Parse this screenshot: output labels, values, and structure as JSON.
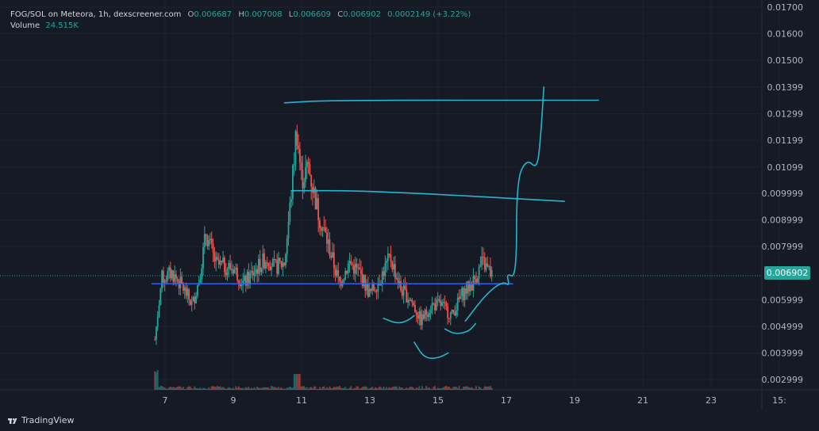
{
  "legend": {
    "symbol": "FOG/SOL on Meteora, 1h, dexscreener.com",
    "open_label": "O",
    "open": "0.006687",
    "high_label": "H",
    "high": "0.007008",
    "low_label": "L",
    "low": "0.006609",
    "close_label": "C",
    "close": "0.006902",
    "change": "0.0002149 (+3.22%)",
    "volume_label": "Volume",
    "volume": "24.515K"
  },
  "last_price": "0.006902",
  "brand": "TradingView",
  "colors": {
    "up": "#26a69a",
    "down": "#ef5350",
    "drawing": "#26b5cf",
    "hline": "#2962ff",
    "background": "#161a25"
  },
  "chart_data": {
    "type": "candlestick",
    "ylim": [
      0.0025,
      0.0172
    ],
    "xlim": [
      6.0,
      26.0
    ],
    "y_ticks": [
      "0.01700",
      "0.01600",
      "0.01500",
      "0.01399",
      "0.01299",
      "0.01199",
      "0.01099",
      "0.009999",
      "0.008999",
      "0.007999",
      "0.005999",
      "0.004999",
      "0.003999",
      "0.002999"
    ],
    "x_ticks": [
      "7",
      "9",
      "11",
      "13",
      "15",
      "17",
      "19",
      "21",
      "23",
      "15:"
    ],
    "key_closes": [
      [
        6.7,
        0.0045
      ],
      [
        6.9,
        0.0068
      ],
      [
        7.2,
        0.007
      ],
      [
        7.5,
        0.0065
      ],
      [
        7.8,
        0.0058
      ],
      [
        8.0,
        0.0068
      ],
      [
        8.2,
        0.0085
      ],
      [
        8.5,
        0.0073
      ],
      [
        9.0,
        0.0072
      ],
      [
        9.3,
        0.0066
      ],
      [
        9.7,
        0.0072
      ],
      [
        10.0,
        0.0076
      ],
      [
        10.2,
        0.0072
      ],
      [
        10.5,
        0.0074
      ],
      [
        10.7,
        0.01
      ],
      [
        10.85,
        0.0125
      ],
      [
        11.0,
        0.0105
      ],
      [
        11.2,
        0.011
      ],
      [
        11.5,
        0.0092
      ],
      [
        11.8,
        0.008
      ],
      [
        12.1,
        0.0066
      ],
      [
        12.4,
        0.0074
      ],
      [
        12.7,
        0.007
      ],
      [
        13.0,
        0.0062
      ],
      [
        13.3,
        0.0068
      ],
      [
        13.6,
        0.0076
      ],
      [
        13.9,
        0.0064
      ],
      [
        14.2,
        0.006
      ],
      [
        14.5,
        0.0052
      ],
      [
        14.8,
        0.0058
      ],
      [
        15.1,
        0.0058
      ],
      [
        15.4,
        0.0054
      ],
      [
        15.7,
        0.0062
      ],
      [
        16.0,
        0.0066
      ],
      [
        16.3,
        0.0074
      ],
      [
        16.6,
        0.006902
      ]
    ],
    "horizontal_line": 0.0066,
    "drawings": [
      {
        "name": "top-line",
        "points": [
          [
            10.5,
            0.0134
          ],
          [
            11.8,
            0.0135
          ],
          [
            19.7,
            0.0135
          ]
        ]
      },
      {
        "name": "mid-line",
        "points": [
          [
            10.7,
            0.0101
          ],
          [
            13.0,
            0.0101
          ],
          [
            18.7,
            0.0097
          ]
        ]
      },
      {
        "name": "cup-left",
        "points": [
          [
            13.4,
            0.0053
          ],
          [
            13.8,
            0.0051
          ],
          [
            14.1,
            0.0052
          ],
          [
            14.3,
            0.0054
          ]
        ]
      },
      {
        "name": "cup-big",
        "points": [
          [
            14.3,
            0.0044
          ],
          [
            14.6,
            0.0038
          ],
          [
            15.0,
            0.0038
          ],
          [
            15.3,
            0.004
          ]
        ]
      },
      {
        "name": "cup-right",
        "points": [
          [
            15.2,
            0.0049
          ],
          [
            15.5,
            0.0047
          ],
          [
            15.9,
            0.0048
          ],
          [
            16.1,
            0.0051
          ]
        ]
      },
      {
        "name": "breakout-path",
        "points": [
          [
            15.8,
            0.0052
          ],
          [
            16.4,
            0.0062
          ],
          [
            16.9,
            0.0067
          ],
          [
            17.1,
            0.0065
          ],
          [
            17.0,
            0.007
          ],
          [
            17.3,
            0.0068
          ],
          [
            17.3,
            0.0105
          ],
          [
            17.6,
            0.0113
          ],
          [
            17.9,
            0.0109
          ],
          [
            18.0,
            0.012
          ],
          [
            18.1,
            0.014
          ]
        ]
      }
    ]
  }
}
